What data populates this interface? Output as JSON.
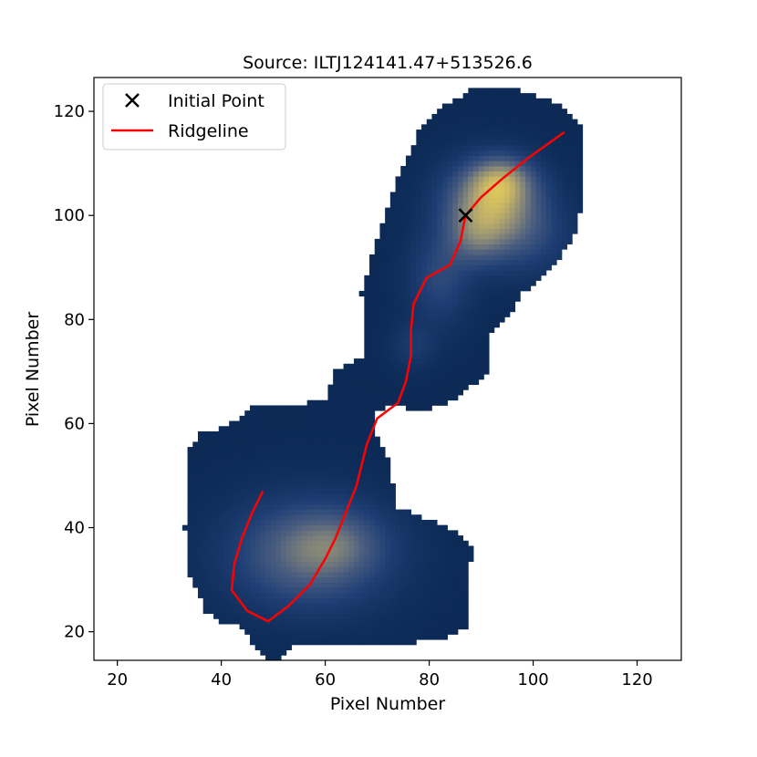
{
  "chart_data": {
    "type": "heatmap",
    "title": "Source: ILTJ124141.47+513526.6",
    "xlabel": "Pixel Number",
    "ylabel": "Pixel Number",
    "xlim": [
      15.5,
      128.5
    ],
    "ylim": [
      14.5,
      126.5
    ],
    "xticks": [
      20,
      40,
      60,
      80,
      100,
      120
    ],
    "yticks": [
      20,
      40,
      60,
      80,
      100,
      120
    ],
    "colormap": [
      "#0c2a55",
      "#1f3f75",
      "#4a5d80",
      "#8a8a78",
      "#c8b566",
      "#f2dc52"
    ],
    "background": "#ffffff",
    "source_mask_polygon": [
      [
        49,
        15
      ],
      [
        52,
        15
      ],
      [
        54,
        17
      ],
      [
        60,
        18
      ],
      [
        70,
        18
      ],
      [
        78,
        18
      ],
      [
        84,
        19
      ],
      [
        88,
        21
      ],
      [
        88,
        27
      ],
      [
        88,
        33
      ],
      [
        89,
        35
      ],
      [
        86,
        39
      ],
      [
        79,
        42
      ],
      [
        74,
        44
      ],
      [
        72,
        54
      ],
      [
        70,
        58
      ],
      [
        70,
        62
      ],
      [
        73,
        64
      ],
      [
        78,
        62
      ],
      [
        84,
        64
      ],
      [
        88,
        67
      ],
      [
        92,
        70
      ],
      [
        92,
        77
      ],
      [
        96,
        81
      ],
      [
        98,
        85
      ],
      [
        104,
        90
      ],
      [
        108,
        96
      ],
      [
        110,
        105
      ],
      [
        110,
        112
      ],
      [
        110,
        117
      ],
      [
        106,
        121
      ],
      [
        101,
        123
      ],
      [
        98,
        124
      ],
      [
        92,
        125
      ],
      [
        88,
        124
      ],
      [
        83,
        121
      ],
      [
        78,
        116
      ],
      [
        74,
        107
      ],
      [
        71,
        98
      ],
      [
        69,
        92
      ],
      [
        67,
        85
      ],
      [
        68,
        78
      ],
      [
        68,
        73
      ],
      [
        66,
        72
      ],
      [
        62,
        70
      ],
      [
        60,
        64
      ],
      [
        58,
        65
      ],
      [
        55,
        63
      ],
      [
        51,
        64
      ],
      [
        47,
        64
      ],
      [
        44,
        61
      ],
      [
        40,
        59
      ],
      [
        36,
        58
      ],
      [
        34,
        55
      ],
      [
        34,
        50
      ],
      [
        34,
        45
      ],
      [
        33,
        40
      ],
      [
        34,
        36
      ],
      [
        34,
        31
      ],
      [
        35,
        29
      ],
      [
        37,
        24
      ],
      [
        40,
        22
      ],
      [
        44,
        21
      ],
      [
        46,
        18
      ]
    ],
    "blobs": [
      {
        "x": 57,
        "y": 35,
        "sx": 10,
        "sy": 7,
        "amp": 0.42
      },
      {
        "x": 62,
        "y": 37,
        "sx": 6,
        "sy": 4,
        "amp": 0.18
      },
      {
        "x": 92,
        "y": 103,
        "sx": 6,
        "sy": 5,
        "amp": 0.62
      },
      {
        "x": 94,
        "y": 107,
        "sx": 4,
        "sy": 3,
        "amp": 0.35
      },
      {
        "x": 89,
        "y": 96,
        "sx": 4,
        "sy": 4,
        "amp": 0.3
      },
      {
        "x": 82,
        "y": 88,
        "sx": 4,
        "sy": 6,
        "amp": 0.22
      },
      {
        "x": 77,
        "y": 75,
        "sx": 3,
        "sy": 3,
        "amp": 0.12
      },
      {
        "x": 98,
        "y": 96,
        "sx": 6,
        "sy": 5,
        "amp": 0.22
      }
    ],
    "series": [
      {
        "name": "Initial Point",
        "type": "scatter",
        "marker": "x",
        "color": "#000000",
        "points": [
          [
            87,
            100
          ]
        ]
      },
      {
        "name": "Ridgeline",
        "type": "line",
        "color": "#ff0000",
        "points": [
          [
            48,
            47
          ],
          [
            46,
            43
          ],
          [
            44,
            38
          ],
          [
            42.5,
            33
          ],
          [
            42,
            28
          ],
          [
            45,
            24
          ],
          [
            49,
            22
          ],
          [
            53,
            25
          ],
          [
            57,
            29
          ],
          [
            60,
            34
          ],
          [
            62,
            38
          ],
          [
            64,
            43
          ],
          [
            66,
            48
          ],
          [
            67,
            52
          ],
          [
            68,
            56
          ],
          [
            70,
            61
          ],
          [
            74,
            64
          ],
          [
            75.5,
            68
          ],
          [
            76.5,
            73
          ],
          [
            76.5,
            78
          ],
          [
            77,
            83
          ],
          [
            79.5,
            88
          ],
          [
            84,
            90.5
          ],
          [
            86,
            95
          ],
          [
            87,
            100
          ],
          [
            90,
            103.5
          ],
          [
            94,
            107
          ],
          [
            99,
            111
          ],
          [
            106,
            116
          ]
        ]
      }
    ],
    "legend": {
      "position": "top-left"
    },
    "grid": false
  }
}
